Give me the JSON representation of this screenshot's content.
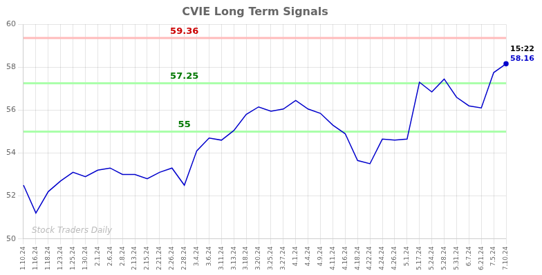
{
  "chart_data": {
    "type": "line",
    "title": "CVIE Long Term Signals",
    "categories": [
      "1.10.24",
      "1.16.24",
      "1.18.24",
      "1.23.24",
      "1.25.24",
      "1.30.24",
      "2.1.24",
      "2.6.24",
      "2.8.24",
      "2.13.24",
      "2.15.24",
      "2.21.24",
      "2.26.24",
      "2.28.24",
      "3.4.24",
      "3.6.24",
      "3.11.24",
      "3.13.24",
      "3.18.24",
      "3.20.24",
      "3.25.24",
      "3.27.24",
      "4.1.24",
      "4.4.24",
      "4.9.24",
      "4.11.24",
      "4.16.24",
      "4.18.24",
      "4.22.24",
      "4.24.24",
      "4.26.24",
      "5.1.24",
      "5.17.24",
      "5.24.24",
      "5.28.24",
      "5.31.24",
      "6.7.24",
      "6.21.24",
      "7.5.24",
      "7.10.24"
    ],
    "values": [
      52.5,
      51.2,
      52.2,
      52.7,
      53.1,
      52.9,
      53.2,
      53.3,
      53.0,
      53.0,
      52.8,
      53.1,
      53.3,
      52.5,
      54.1,
      54.7,
      54.6,
      55.05,
      55.8,
      56.15,
      55.95,
      56.05,
      56.45,
      56.05,
      55.85,
      55.3,
      54.9,
      53.65,
      53.5,
      54.65,
      54.6,
      54.65,
      57.3,
      56.85,
      57.45,
      56.6,
      56.2,
      56.1,
      57.75,
      58.16
    ],
    "color": "#0000cc",
    "ylim": [
      50,
      60
    ],
    "yticks": [
      50,
      52,
      54,
      56,
      58,
      60
    ],
    "grid": true,
    "hlines": [
      {
        "value": 59.36,
        "label": "59.36",
        "color": "#ffbbbb",
        "label_color": "#cc0000"
      },
      {
        "value": 57.25,
        "label": "57.25",
        "color": "#aaffaa",
        "label_color": "#007700"
      },
      {
        "value": 55.0,
        "label": "55",
        "color": "#aaffaa",
        "label_color": "#007700"
      }
    ],
    "annotations": [
      {
        "text": "15:22",
        "color": "#000000"
      },
      {
        "text": "58.16",
        "color": "#0000cc"
      }
    ],
    "watermark": "Stock Traders Daily"
  }
}
